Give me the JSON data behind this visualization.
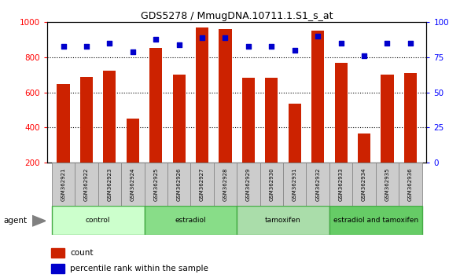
{
  "title": "GDS5278 / MmugDNA.10711.1.S1_s_at",
  "samples": [
    "GSM362921",
    "GSM362922",
    "GSM362923",
    "GSM362924",
    "GSM362925",
    "GSM362926",
    "GSM362927",
    "GSM362928",
    "GSM362929",
    "GSM362930",
    "GSM362931",
    "GSM362932",
    "GSM362933",
    "GSM362934",
    "GSM362935",
    "GSM362936"
  ],
  "counts": [
    650,
    690,
    725,
    450,
    855,
    700,
    970,
    960,
    685,
    683,
    535,
    950,
    770,
    365,
    700,
    710
  ],
  "percentile_ranks": [
    83,
    83,
    85,
    79,
    88,
    84,
    89,
    89,
    83,
    83,
    80,
    90,
    85,
    76,
    85,
    85
  ],
  "groups": [
    {
      "label": "control",
      "start": 0,
      "end": 4,
      "color": "#ccffcc"
    },
    {
      "label": "estradiol",
      "start": 4,
      "end": 8,
      "color": "#88dd88"
    },
    {
      "label": "tamoxifen",
      "start": 8,
      "end": 12,
      "color": "#aaddaa"
    },
    {
      "label": "estradiol and tamoxifen",
      "start": 12,
      "end": 16,
      "color": "#66cc66"
    }
  ],
  "bar_color": "#cc2200",
  "dot_color": "#0000cc",
  "ylim_left": [
    200,
    1000
  ],
  "ylim_right": [
    0,
    100
  ],
  "yticks_left": [
    200,
    400,
    600,
    800,
    1000
  ],
  "yticks_right": [
    0,
    25,
    50,
    75,
    100
  ],
  "grid_values": [
    400,
    600,
    800
  ],
  "bar_width": 0.55,
  "legend_count_label": "count",
  "legend_pct_label": "percentile rank within the sample",
  "agent_label": "agent"
}
